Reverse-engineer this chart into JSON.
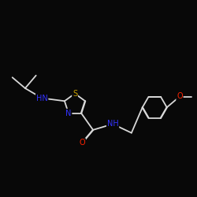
{
  "bg_color": "#080808",
  "bond_color": "#d8d8d8",
  "atom_colors": {
    "S": "#c8a000",
    "N": "#3333ff",
    "O": "#ff2200",
    "C": "#d8d8d8"
  },
  "figsize": [
    2.5,
    2.5
  ],
  "dpi": 100
}
